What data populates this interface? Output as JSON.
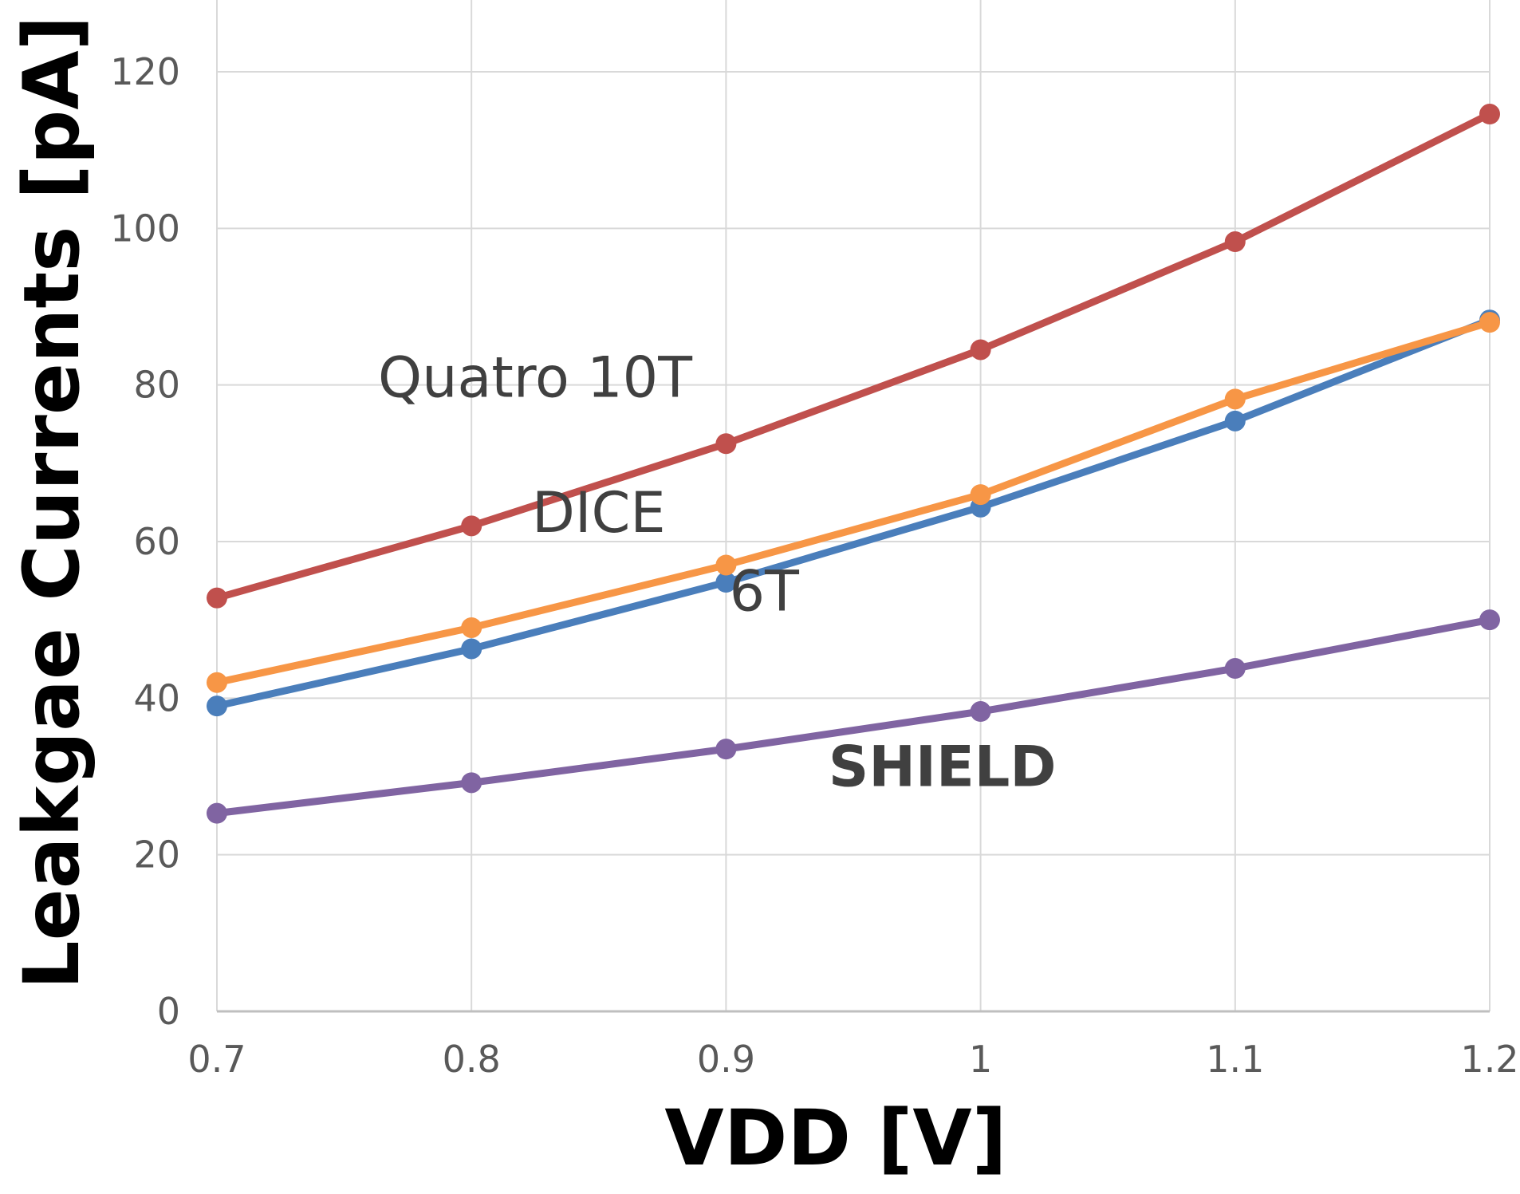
{
  "chart_data": {
    "type": "line",
    "title": "",
    "xlabel": "VDD [V]",
    "ylabel": "Leakgae Currents [pA]",
    "x": [
      0.7,
      0.8,
      0.9,
      1.0,
      1.1,
      1.2
    ],
    "x_tick_labels": [
      "0.7",
      "0.8",
      "0.9",
      "1",
      "1.1",
      "1.2"
    ],
    "xlim": [
      0.7,
      1.2
    ],
    "ylim": [
      0,
      120
    ],
    "y_ticks": [
      0,
      20,
      40,
      60,
      80,
      100,
      120
    ],
    "grid": true,
    "legend": "none (inline labels)",
    "series": [
      {
        "name": "Quatro 10T",
        "color": "#c0504d",
        "values": [
          52.8,
          62,
          72.5,
          84.5,
          98.3,
          114.6
        ]
      },
      {
        "name": "6T",
        "color": "#4a7ebb",
        "values": [
          39,
          46.3,
          54.8,
          64.4,
          75.4,
          88.3
        ]
      },
      {
        "name": "DICE",
        "color": "#f79646",
        "values": [
          42,
          49,
          57,
          66,
          78.2,
          88
        ]
      },
      {
        "name": "SHIELD",
        "color": "#8064a2",
        "values": [
          25.3,
          29.2,
          33.5,
          38.3,
          43.8,
          50
        ]
      }
    ],
    "annotations": [
      {
        "text": "Quatro 10T",
        "series": "Quatro 10T",
        "weight": "normal",
        "x": 0.825,
        "y": 78.5
      },
      {
        "text": "DICE",
        "series": "DICE",
        "weight": "normal",
        "x": 0.85,
        "y": 61.2
      },
      {
        "text": "6T",
        "series": "6T",
        "weight": "normal",
        "x": 0.915,
        "y": 51.2
      },
      {
        "text": "SHIELD",
        "series": "SHIELD",
        "weight": "bold",
        "x": 0.985,
        "y": 28.8
      }
    ],
    "colors": {
      "grid": "#d9d9d9",
      "tick_text": "#595959",
      "annotation_text": "#404040",
      "axis_title": "#000000"
    }
  }
}
